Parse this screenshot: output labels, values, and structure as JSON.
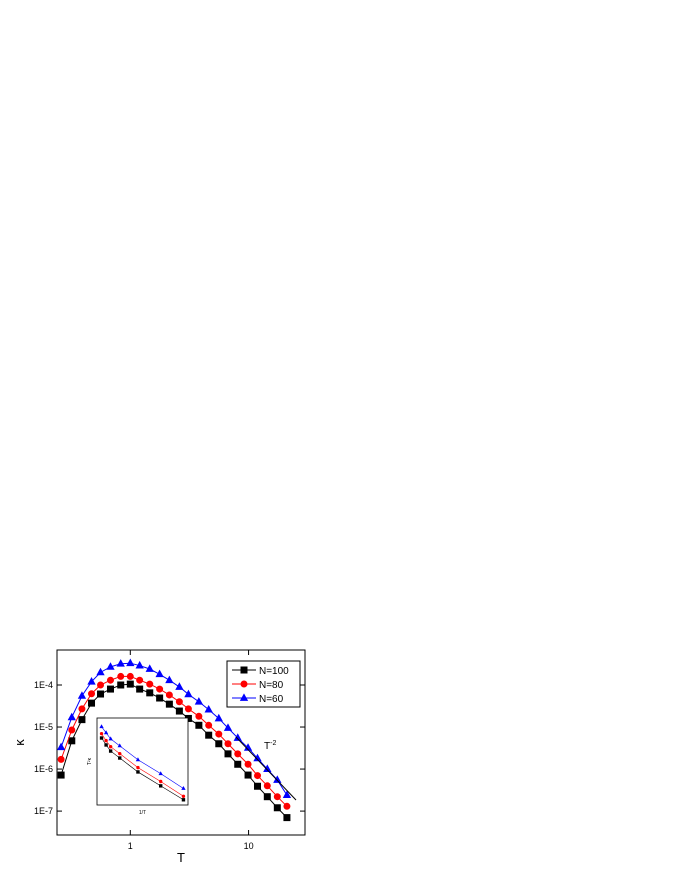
{
  "chart_data": [
    {
      "type": "line",
      "xlabel": "T",
      "ylabel": "κ",
      "xscale": "log",
      "yscale": "log",
      "xlim": [
        0.24,
        30
      ],
      "ylim": [
        2.7e-08,
        0.00068
      ],
      "xticks": [
        1,
        10
      ],
      "yticks": [
        {
          "value": 1e-07,
          "label": "1E-7"
        },
        {
          "value": 1e-06,
          "label": "1E-6"
        },
        {
          "value": 1e-05,
          "label": "1E-5"
        },
        {
          "value": 0.0001,
          "label": "1E-4"
        }
      ],
      "legend": "upper right",
      "annotation": {
        "text": "T",
        "superscript": "-2"
      },
      "x": [
        0.26,
        0.32,
        0.39,
        0.47,
        0.56,
        0.68,
        0.83,
        1,
        1.2,
        1.46,
        1.77,
        2.14,
        2.6,
        3.1,
        3.8,
        4.6,
        5.6,
        6.7,
        8.1,
        9.9,
        11.9,
        14.4,
        17.5,
        21.1
      ],
      "series": [
        {
          "name": "N=100",
          "color": "#000000",
          "marker": "square",
          "values": [
            7.2e-07,
            4.7e-06,
            1.5e-05,
            3.7e-05,
            6.1e-05,
            8e-05,
            0.0001,
            0.000105,
            8e-05,
            6.5e-05,
            4.9e-05,
            3.5e-05,
            2.4e-05,
            1.6e-05,
            1.1e-05,
            6.4e-06,
            4e-06,
            2.3e-06,
            1.3e-06,
            7.2e-07,
            3.9e-07,
            2.2e-07,
            1.2e-07,
            7e-08
          ]
        },
        {
          "name": "N=80",
          "color": "#ff0000",
          "marker": "circle",
          "values": [
            1.7e-06,
            8.5e-06,
            2.7e-05,
            6.2e-05,
            0.0001,
            0.00013,
            0.00016,
            0.00016,
            0.00013,
            0.000105,
            8e-05,
            5.8e-05,
            4e-05,
            2.7e-05,
            1.8e-05,
            1.1e-05,
            6.8e-06,
            4e-06,
            2.3e-06,
            1.3e-06,
            7e-07,
            4e-07,
            2.2e-07,
            1.3e-07
          ]
        },
        {
          "name": "N=60",
          "color": "#0000ff",
          "marker": "triangle",
          "values": [
            3.3e-06,
            1.7e-05,
            5.5e-05,
            0.00012,
            0.0002,
            0.00027,
            0.00032,
            0.00033,
            0.00029,
            0.00024,
            0.00018,
            0.00013,
            9e-05,
            6e-05,
            4e-05,
            2.6e-05,
            1.6e-05,
            9.5e-06,
            5.5e-06,
            3.2e-06,
            1.8e-06,
            1e-06,
            5.5e-07,
            2.4e-07
          ]
        }
      ]
    },
    {
      "type": "line",
      "xlabel": "1/T",
      "ylabel": "T²κ",
      "xlim": [
        0,
        1
      ],
      "ylim": [
        0,
        1
      ],
      "x": [
        0.05,
        0.1,
        0.15,
        0.25,
        0.45,
        0.7,
        0.95
      ],
      "series": [
        {
          "color": "#000000",
          "values": [
            0.77,
            0.69,
            0.62,
            0.54,
            0.38,
            0.22,
            0.06
          ]
        },
        {
          "color": "#ff0000",
          "values": [
            0.82,
            0.74,
            0.67,
            0.59,
            0.43,
            0.27,
            0.1
          ]
        },
        {
          "color": "#0000ff",
          "values": [
            0.9,
            0.83,
            0.76,
            0.68,
            0.52,
            0.36,
            0.19
          ]
        }
      ]
    }
  ]
}
